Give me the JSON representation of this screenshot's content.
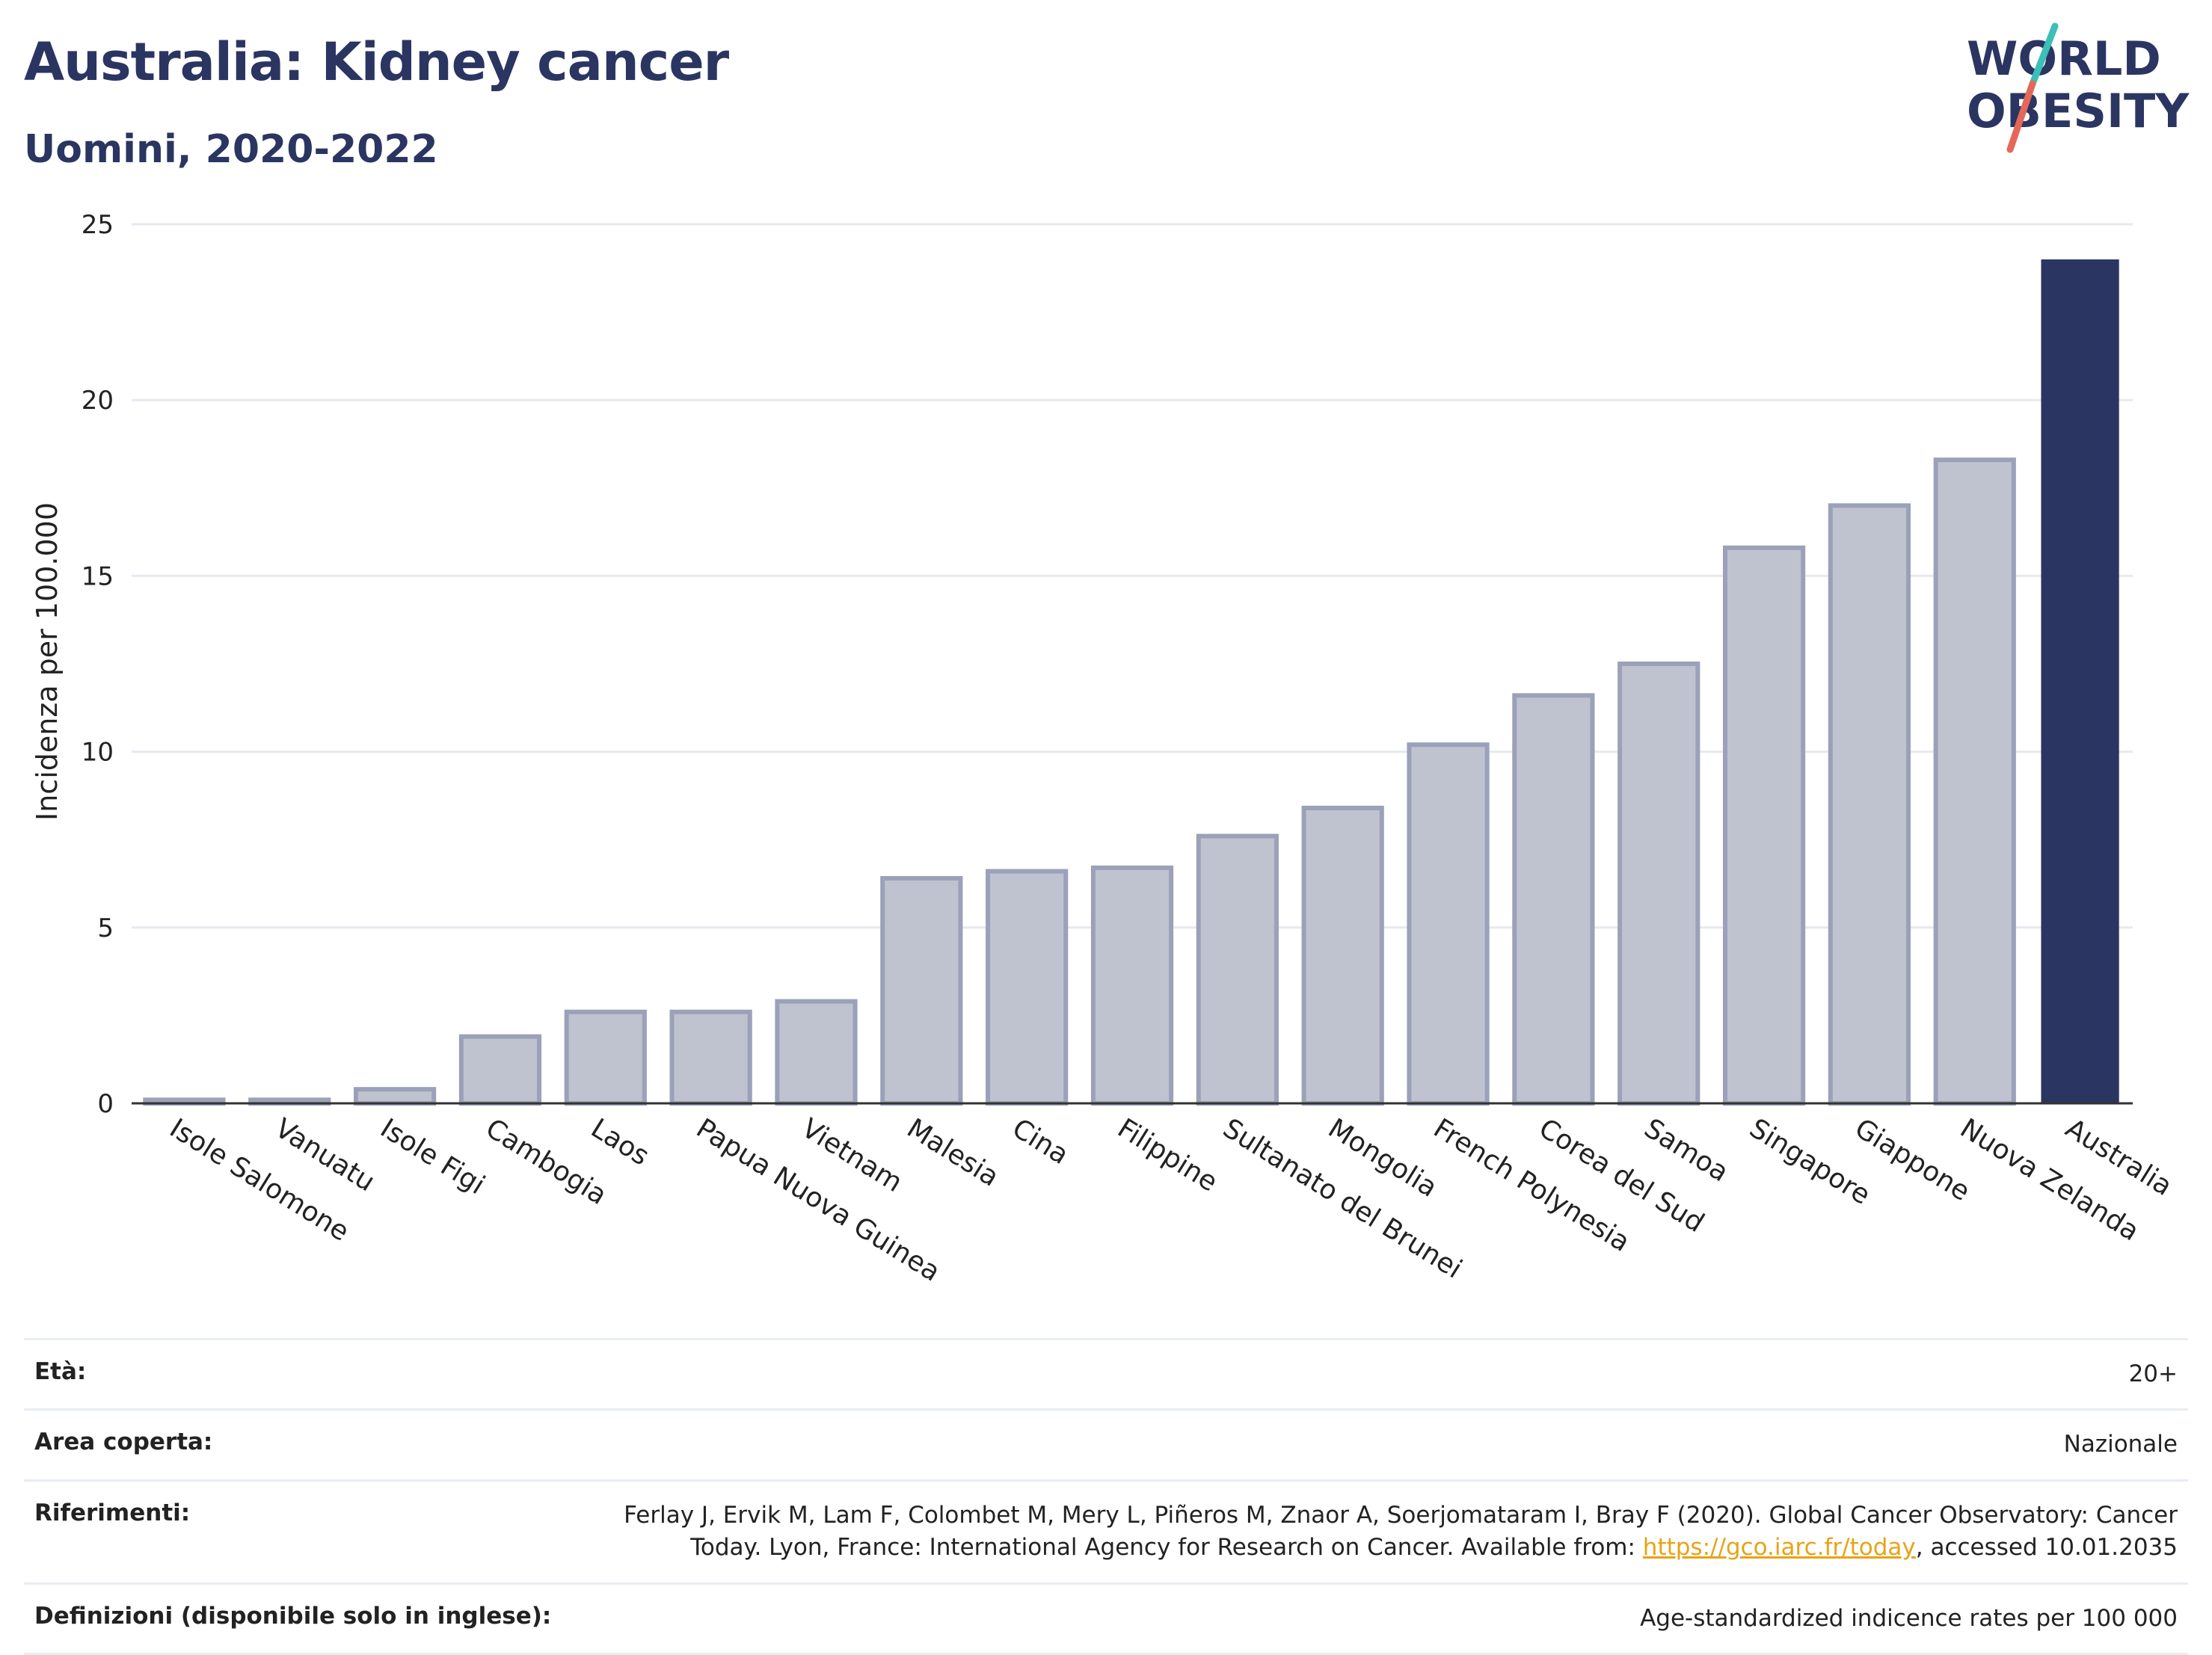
{
  "header": {
    "title": "Australia: Kidney cancer",
    "subtitle": "Uomini, 2020-2022"
  },
  "logo": {
    "line1": "WORLD",
    "line2": "OBESITY"
  },
  "colors": {
    "highlight_bar": "#2b3561",
    "other_bar_fill": "#bfc3d0",
    "other_bar_stroke": "#9aa1b8",
    "grid": "#e6e9f0",
    "teal_slash": "#3bbfb6",
    "red_slash": "#e4685a"
  },
  "chart_data": {
    "type": "bar",
    "title": "Australia: Kidney cancer",
    "subtitle": "Uomini, 2020-2022",
    "ylabel": "Incidenza per 100.000",
    "xlabel": "",
    "ylim": [
      0,
      25
    ],
    "yticks": [
      0,
      5,
      10,
      15,
      20,
      25
    ],
    "grid": true,
    "highlight": "Australia",
    "categories": [
      "Isole Salomone",
      "Vanuatu",
      "Isole Figi",
      "Cambogia",
      "Laos",
      "Papua Nuova Guinea",
      "Vietnam",
      "Malesia",
      "Cina",
      "Filippine",
      "Sultanato del Brunei",
      "Mongolia",
      "French Polynesia",
      "Corea del Sud",
      "Samoa",
      "Singapore",
      "Giappone",
      "Nuova Zelanda",
      "Australia"
    ],
    "values": [
      0.1,
      0.1,
      0.4,
      1.9,
      2.6,
      2.6,
      2.9,
      6.4,
      6.6,
      6.7,
      7.6,
      8.4,
      10.2,
      11.6,
      12.5,
      15.8,
      17.0,
      18.3,
      24.0
    ]
  },
  "meta": {
    "age_label": "Età:",
    "age_value": "20+",
    "area_label": "Area coperta:",
    "area_value": "Nazionale",
    "refs_label": "Riferimenti:",
    "refs_text_1": "Ferlay J, Ervik M, Lam F, Colombet M, Mery L, Piñeros M, Znaor A, Soerjomataram I, Bray F (2020). Global Cancer Observatory: Cancer Today. Lyon, France: International Agency for Research on Cancer. Available from: ",
    "refs_link": "https://gco.iarc.fr/today",
    "refs_text_2": ", accessed 10.01.2035",
    "defs_label": "Definizioni (disponibile solo in inglese):",
    "defs_value": "Age-standardized indicence rates per 100 000"
  }
}
